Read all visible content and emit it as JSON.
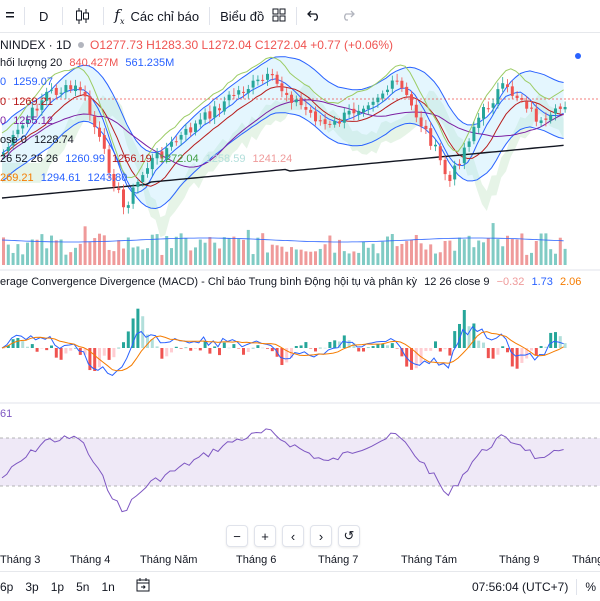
{
  "toolbar": {
    "interval": "D",
    "indicators_label": "Các chỉ báo",
    "layout_label": "Biểu đồ"
  },
  "symbol": {
    "name": "NINDEX · 1D",
    "open": "O1277.73",
    "high": "H1283.30",
    "low": "L1272.04",
    "close": "C1272.04",
    "change": "+0.77 (+0.06%)"
  },
  "volume_legend": {
    "label": "hối lượng 20",
    "v1": "840.427M",
    "v2": "561.235M"
  },
  "ma_legends": [
    {
      "prefix": "0",
      "value": "1259.07",
      "color": "#2962ff"
    },
    {
      "prefix": "0",
      "value": "1269.21",
      "color": "#b71c1c"
    },
    {
      "prefix": "0",
      "value": "1255.12",
      "color": "#7b1fa2"
    },
    {
      "prefix": "ose 0",
      "value": "1228.74",
      "color": "#131722"
    }
  ],
  "ichimoku_legend": {
    "prefix": "26 52 26 26",
    "values": [
      "1260.99",
      "1256.19",
      "1272.04",
      "1258.59",
      "1241.24"
    ],
    "colors": [
      "#2962ff",
      "#b71c1c",
      "#43a047",
      "#b2dfdb",
      "#ef9a9a"
    ]
  },
  "bb_legend": {
    "values": [
      "269.21",
      "1294.61",
      "1243.80"
    ],
    "colors": [
      "#f57c00",
      "#2962ff",
      "#2962ff"
    ]
  },
  "macd": {
    "title": "erage Convergence Divergence (MACD) - Chỉ báo Trung bình Động hội tụ và phân kỳ",
    "params": "12 26 close 9",
    "hist": "−0.32",
    "macd_val": "1.73",
    "signal_val": "2.06",
    "colors": {
      "hist": "#ef9a9a",
      "macd": "#2962ff",
      "signal": "#f57c00"
    }
  },
  "rsi": {
    "value_label": "61"
  },
  "controls": [
    "−",
    "+",
    "‹",
    "›",
    "↺"
  ],
  "months": [
    "Tháng 3",
    "Tháng 4",
    "Tháng Năm",
    "Tháng 6",
    "Tháng 7",
    "Tháng Tám",
    "Tháng 9",
    "Tháng"
  ],
  "bottom": {
    "timeframes": [
      "6p",
      "3p",
      "1p",
      "5n",
      "1n"
    ],
    "clock": "07:56:04 (UTC+7)",
    "percent": "%"
  },
  "colors": {
    "up": "#26a69a",
    "down": "#ef5350",
    "rsi_band": "#ede7f6",
    "rsi_line": "#7e57c2"
  }
}
